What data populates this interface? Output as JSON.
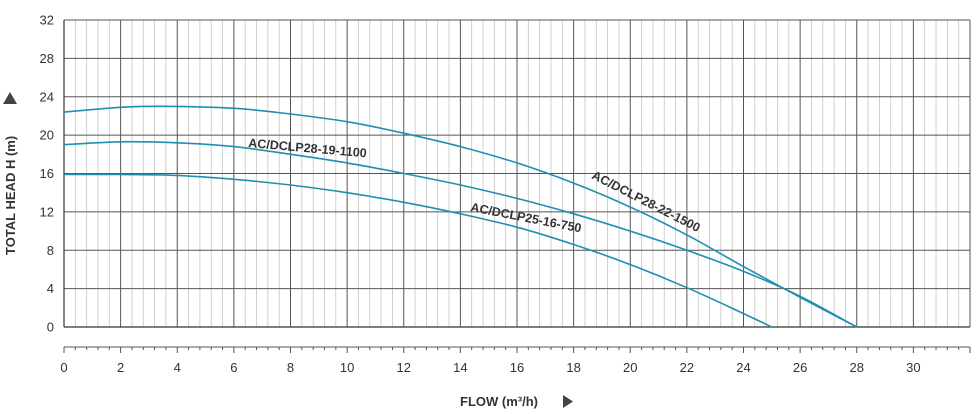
{
  "chart_data": {
    "type": "line",
    "xlabel": "FLOW (m³/h)",
    "ylabel": "TOTAL HEAD H (m)",
    "xlim": [
      0,
      32
    ],
    "ylim": [
      0,
      32
    ],
    "x_ticks": [
      "0",
      "2",
      "4",
      "6",
      "8",
      "10",
      "12",
      "14",
      "16",
      "18",
      "20",
      "22",
      "24",
      "26",
      "28",
      "30"
    ],
    "y_ticks": [
      "0",
      "4",
      "8",
      "12",
      "16",
      "20",
      "24",
      "28",
      "32"
    ],
    "grid": true,
    "line_color": "#1f8fb0",
    "series": [
      {
        "name": "AC/DCLP28-22-1500",
        "x": [
          0,
          2,
          3.5,
          6,
          8,
          10,
          12,
          14,
          16,
          18,
          20,
          22,
          24,
          26,
          28
        ],
        "y": [
          22.4,
          22.9,
          23.0,
          22.8,
          22.2,
          21.4,
          20.2,
          18.8,
          17.1,
          15.0,
          12.5,
          9.6,
          6.3,
          3.1,
          0
        ]
      },
      {
        "name": "AC/DCLP28-19-1100",
        "x": [
          0,
          2,
          4,
          6,
          8,
          10,
          12,
          14,
          16,
          18,
          20,
          22,
          24,
          26,
          28
        ],
        "y": [
          19.0,
          19.3,
          19.2,
          18.8,
          18.0,
          17.1,
          16.0,
          14.8,
          13.4,
          11.8,
          10.0,
          8.0,
          5.8,
          3.2,
          0
        ]
      },
      {
        "name": "AC/DCLP25-16-750",
        "x": [
          0,
          2,
          4,
          6,
          8,
          10,
          12,
          14,
          16,
          18,
          20,
          22,
          24,
          25
        ],
        "y": [
          15.9,
          15.9,
          15.8,
          15.4,
          14.8,
          14.0,
          13.0,
          11.8,
          10.4,
          8.6,
          6.5,
          4.1,
          1.4,
          0
        ]
      }
    ]
  }
}
